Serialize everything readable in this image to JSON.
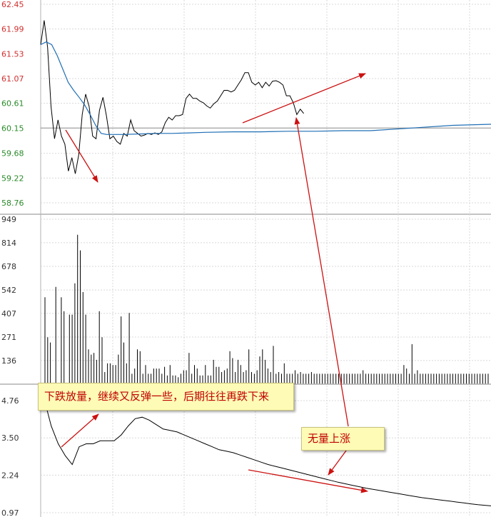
{
  "chart_data": [
    {
      "type": "line",
      "y_ticks": [
        "62.45",
        "61.99",
        "61.53",
        "61.07",
        "60.61",
        "60.15",
        "59.68",
        "59.22",
        "58.76"
      ],
      "y_tick_colors": [
        "#d03030",
        "#d03030",
        "#d03030",
        "#d03030",
        "#2a8a2a",
        "#2a8a2a",
        "#2a8a2a",
        "#2a8a2a",
        "#2a8a2a"
      ],
      "ylim": [
        58.76,
        62.45
      ],
      "reference": 60.15,
      "series": [
        {
          "color": "#000000",
          "values": [
            61.7,
            62.15,
            61.65,
            60.55,
            59.95,
            60.3,
            60.0,
            59.85,
            59.35,
            59.6,
            59.3,
            59.65,
            60.4,
            60.78,
            60.55,
            60.0,
            59.95,
            60.48,
            60.72,
            60.38,
            59.95,
            60.0,
            59.9,
            59.85,
            60.05,
            60.0,
            60.3,
            60.1,
            60.05,
            60.0,
            60.02,
            60.05,
            60.03,
            60.06,
            60.03,
            60.08,
            60.25,
            60.35,
            60.3,
            60.38,
            60.38,
            60.4,
            60.7,
            60.78,
            60.7,
            60.7,
            60.65,
            60.62,
            60.56,
            60.52,
            60.6,
            60.65,
            60.75,
            60.85,
            60.85,
            60.82,
            60.85,
            60.95,
            61.05,
            61.18,
            61.18,
            61.0,
            60.95,
            61.0,
            60.9,
            61.0,
            60.93,
            61.02,
            61.03,
            61.0,
            60.95,
            60.75,
            60.75,
            60.62,
            60.4,
            60.5,
            60.42
          ],
          "step": 4.85
        },
        {
          "color": "#1f6fb5",
          "values": [
            61.7,
            61.75,
            61.7,
            61.5,
            61.25,
            61.0,
            60.85,
            60.72,
            60.58,
            60.4,
            60.2,
            60.05,
            60.03,
            60.03,
            60.04,
            60.05,
            60.05,
            60.06,
            60.07,
            60.08,
            60.08,
            60.09,
            60.09,
            60.1,
            60.1,
            60.15,
            60.2,
            60.22
          ],
          "x_index": [
            0,
            2,
            4,
            6,
            8,
            10,
            12,
            14,
            16,
            18,
            20,
            22,
            24,
            30,
            36,
            42,
            48,
            54,
            60,
            70,
            80,
            90,
            100,
            110,
            120,
            135,
            150,
            164
          ]
        }
      ]
    },
    {
      "type": "bar",
      "y_ticks": [
        "949",
        "814",
        "678",
        "542",
        "407",
        "271",
        "136"
      ],
      "ylim": [
        0,
        949
      ],
      "values": [
        500,
        270,
        240,
        0,
        560,
        0,
        500,
        420,
        0,
        400,
        400,
        580,
        860,
        770,
        530,
        400,
        200,
        170,
        180,
        140,
        420,
        270,
        70,
        120,
        120,
        110,
        110,
        170,
        390,
        240,
        120,
        410,
        60,
        90,
        200,
        190,
        60,
        110,
        60,
        60,
        90,
        90,
        90,
        60,
        100,
        50,
        110,
        50,
        50,
        40,
        60,
        80,
        80,
        180,
        60,
        110,
        90,
        50,
        50,
        110,
        50,
        50,
        140,
        100,
        100,
        70,
        80,
        90,
        190,
        150,
        70,
        140,
        110,
        70,
        80,
        200,
        70,
        60,
        80,
        160,
        200,
        140,
        90,
        70,
        220,
        60,
        70,
        60,
        120,
        60,
        60,
        60,
        80,
        60,
        70,
        60,
        60,
        60,
        70,
        60,
        60,
        60,
        60,
        60,
        60,
        60,
        60,
        60,
        60,
        60,
        60,
        60,
        60,
        60,
        60,
        60,
        60,
        80,
        60,
        60,
        60,
        60,
        60,
        60,
        60,
        60,
        60,
        60,
        60,
        60,
        60,
        60,
        110,
        90,
        60,
        230,
        60,
        80,
        60,
        60,
        60,
        60,
        60,
        60,
        60,
        60,
        60,
        60,
        60,
        60,
        60,
        60,
        60,
        60,
        60,
        60,
        60,
        60,
        60,
        60,
        60,
        60,
        60,
        60
      ],
      "bar_color": "#000000"
    },
    {
      "type": "line",
      "y_ticks": [
        "4.76",
        "3.50",
        "2.24",
        "0.97"
      ],
      "ylim": [
        0.97,
        5.2
      ],
      "series": [
        {
          "color": "#000000",
          "values": [
            4.8,
            3.9,
            3.3,
            2.9,
            2.6,
            3.2,
            3.3,
            3.3,
            3.4,
            3.4,
            3.4,
            3.6,
            3.9,
            4.15,
            4.2,
            4.1,
            3.95,
            3.8,
            3.75,
            3.7,
            3.6,
            3.5,
            3.4,
            3.3,
            3.2,
            3.1,
            3.05,
            3.0,
            2.92,
            2.84,
            2.76,
            2.68,
            2.6,
            2.54,
            2.48,
            2.42,
            2.36,
            2.3,
            2.24,
            2.18,
            2.12,
            2.06,
            2.0,
            1.95,
            1.9,
            1.85,
            1.8,
            1.76,
            1.72,
            1.68,
            1.64,
            1.6,
            1.56,
            1.52,
            1.48,
            1.45,
            1.42,
            1.39,
            1.36,
            1.33,
            1.3,
            1.27,
            1.24,
            1.22,
            1.2,
            1.18,
            1.15,
            1.13,
            1.11,
            1.09
          ],
          "step": 9.8
        }
      ]
    }
  ],
  "annotations": {
    "note1": "下跌放量，继续又反弹一些，后期往往再跌下来",
    "note2": "无量上涨"
  },
  "colors": {
    "grid": "#d8d8d8",
    "panel_border": "#b0b0b0",
    "arrow": "#cc1111",
    "up_tick": "#d03030",
    "down_tick": "#2a8a2a"
  }
}
